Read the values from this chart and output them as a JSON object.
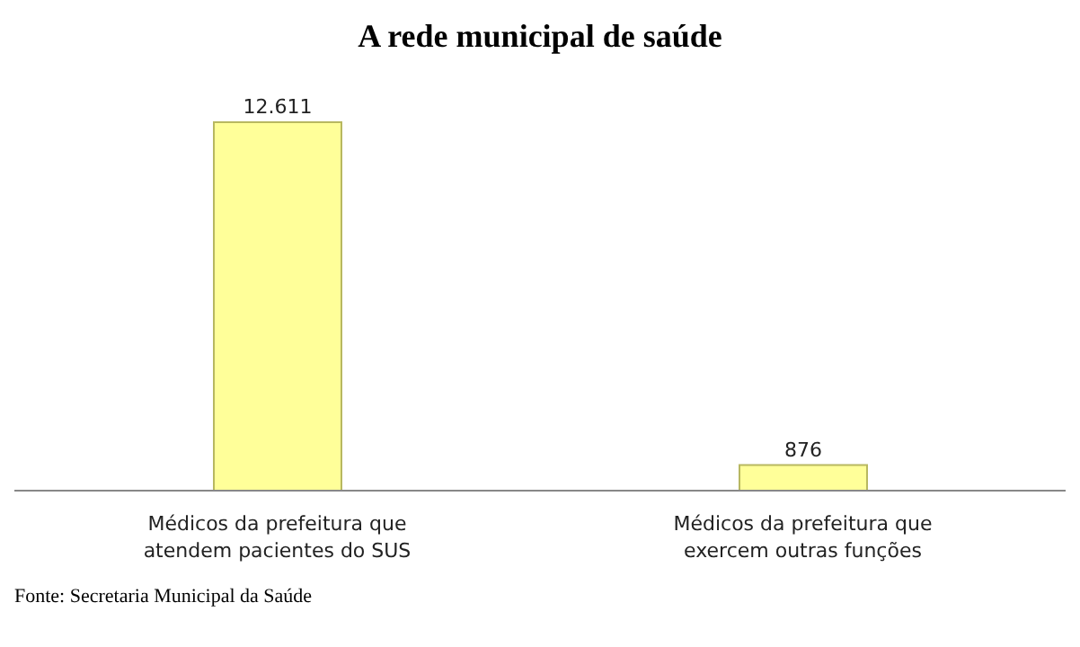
{
  "chart_data": {
    "type": "bar",
    "title": "A rede municipal de saúde",
    "categories": [
      "Médicos da prefeitura que atendem pacientes do SUS",
      "Médicos da prefeitura que exercem outras funções"
    ],
    "values": [
      12611,
      876
    ],
    "value_labels": [
      "12.611",
      "876"
    ],
    "color": "#ffff99",
    "annotations": [
      "Fonte: Secretaria Municipal da Saúde"
    ],
    "grid": false,
    "legend": false
  }
}
